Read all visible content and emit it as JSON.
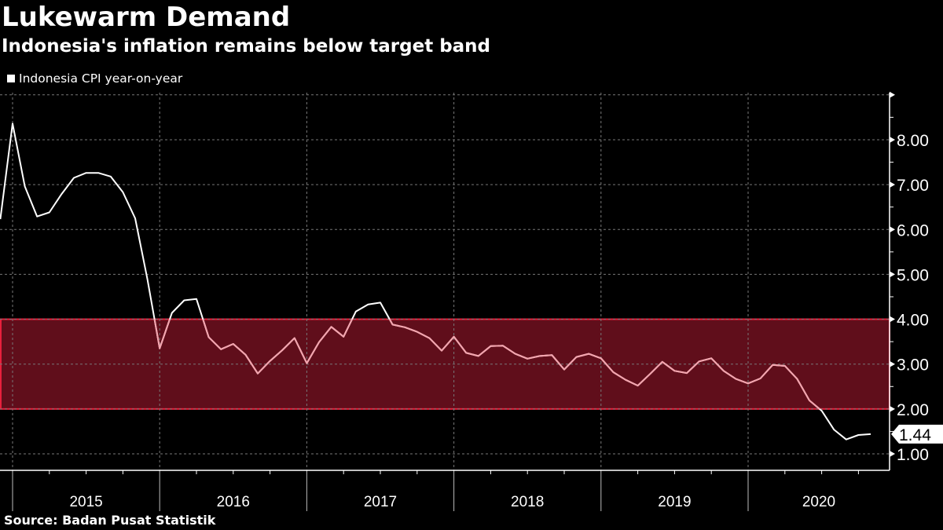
{
  "header": {
    "title": "Lukewarm Demand",
    "subtitle": "Indonesia's inflation remains below target band"
  },
  "footer": {
    "source": "Source:  Badan Pusat Statistik"
  },
  "chart_data": {
    "type": "line",
    "title": "Lukewarm Demand",
    "subtitle": "Indonesia's inflation remains below target band",
    "legend": {
      "position": "top-left",
      "entries": [
        "Indonesia CPI year-on-year"
      ]
    },
    "x_tick_labels": [
      "2015",
      "2016",
      "2017",
      "2018",
      "2019",
      "2020"
    ],
    "y_tick_labels": [
      "1.00",
      "2.00",
      "3.00",
      "4.00",
      "5.00",
      "6.00",
      "7.00",
      "8.00"
    ],
    "ylim": [
      0.65,
      9
    ],
    "xlim": [
      "2014-11",
      "2020-12"
    ],
    "y_axis_side": "right",
    "grid": true,
    "target_band": {
      "low": 2,
      "high": 4,
      "fill": "#600e1b",
      "border": "#e8203c"
    },
    "colors": {
      "line": "#ffffff",
      "line_in_band": "#f4a3ad",
      "background": "#000000"
    },
    "last_value_label": "1.44",
    "series": [
      {
        "name": "Indonesia CPI year-on-year",
        "x": [
          "2014-11",
          "2014-12",
          "2015-01",
          "2015-02",
          "2015-03",
          "2015-04",
          "2015-05",
          "2015-06",
          "2015-07",
          "2015-08",
          "2015-09",
          "2015-10",
          "2015-11",
          "2015-12",
          "2016-01",
          "2016-02",
          "2016-03",
          "2016-04",
          "2016-05",
          "2016-06",
          "2016-07",
          "2016-08",
          "2016-09",
          "2016-10",
          "2016-11",
          "2016-12",
          "2017-01",
          "2017-02",
          "2017-03",
          "2017-04",
          "2017-05",
          "2017-06",
          "2017-07",
          "2017-08",
          "2017-09",
          "2017-10",
          "2017-11",
          "2017-12",
          "2018-01",
          "2018-02",
          "2018-03",
          "2018-04",
          "2018-05",
          "2018-06",
          "2018-07",
          "2018-08",
          "2018-09",
          "2018-10",
          "2018-11",
          "2018-12",
          "2019-01",
          "2019-02",
          "2019-03",
          "2019-04",
          "2019-05",
          "2019-06",
          "2019-07",
          "2019-08",
          "2019-09",
          "2019-10",
          "2019-11",
          "2019-12",
          "2020-01",
          "2020-02",
          "2020-03",
          "2020-04",
          "2020-05",
          "2020-06",
          "2020-07",
          "2020-08",
          "2020-09",
          "2020-10"
        ],
        "values": [
          6.23,
          8.36,
          6.96,
          6.29,
          6.38,
          6.79,
          7.15,
          7.26,
          7.26,
          7.18,
          6.83,
          6.25,
          4.89,
          3.35,
          4.14,
          4.42,
          4.45,
          3.6,
          3.33,
          3.45,
          3.21,
          2.79,
          3.07,
          3.31,
          3.58,
          3.02,
          3.49,
          3.83,
          3.61,
          4.17,
          4.33,
          4.37,
          3.88,
          3.82,
          3.72,
          3.58,
          3.3,
          3.61,
          3.25,
          3.18,
          3.4,
          3.41,
          3.23,
          3.12,
          3.18,
          3.2,
          2.88,
          3.16,
          3.23,
          3.13,
          2.82,
          2.65,
          2.52,
          2.78,
          3.05,
          2.85,
          2.8,
          3.06,
          3.13,
          2.85,
          2.67,
          2.57,
          2.68,
          2.98,
          2.96,
          2.67,
          2.19,
          1.96,
          1.54,
          1.32,
          1.42,
          1.44
        ]
      }
    ]
  }
}
